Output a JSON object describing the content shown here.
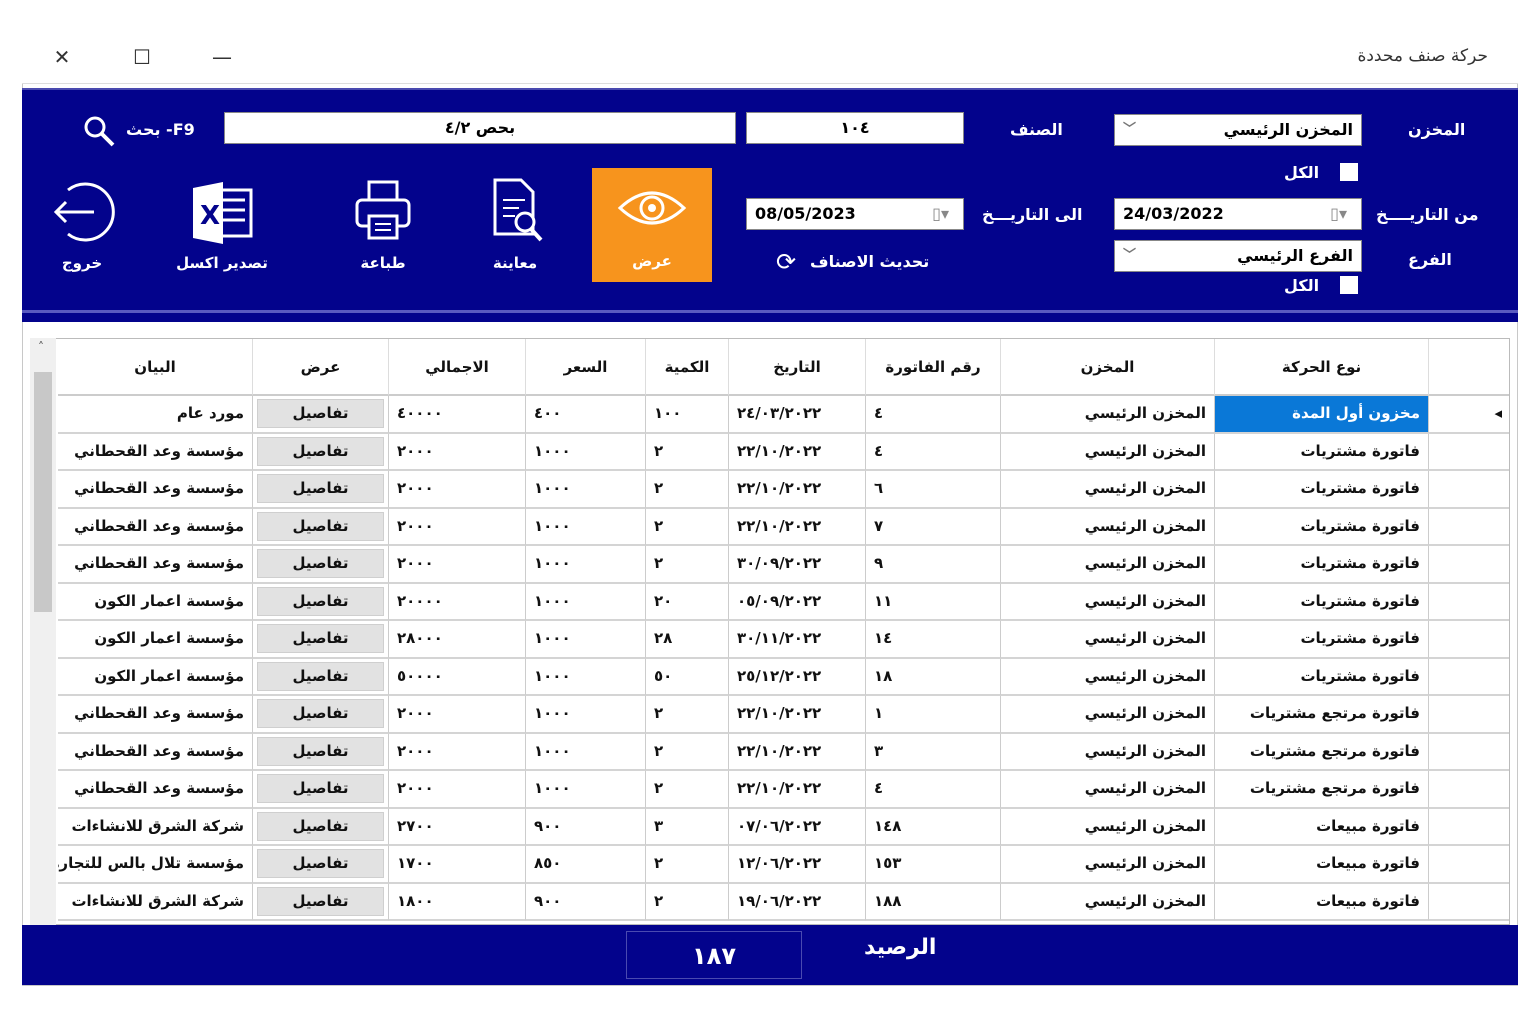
{
  "window": {
    "title": "حركة صنف محددة",
    "close": "✕",
    "maximize": "☐",
    "minimize": "—"
  },
  "filters": {
    "store_label": "المخزن",
    "store_value": "المخزن الرئيسي",
    "item_label": "الصنف",
    "item_code": "١٠٤",
    "item_name": "بحص ٤/٢",
    "search_label": "بحث -F9",
    "all_label": "الكل",
    "from_date_label": "من التاريــــخ",
    "from_date": "24/03/2022",
    "to_date_label": "الى التاريـــخ",
    "to_date": "08/05/2023",
    "branch_label": "الفرع",
    "branch_value": "الفرع الرئيسي",
    "all_label2": "الكل",
    "refresh_label": "تحديث الاصناف"
  },
  "toolbar": {
    "view": "عرض",
    "preview": "معاينة",
    "print": "طباعة",
    "export": "تصدير اكسل",
    "exit": "خروج",
    "accent": "#f7941d"
  },
  "columns": {
    "type": "نوع الحركة",
    "store": "المخزن",
    "invoice": "رقم الفاتورة",
    "date": "التاريخ",
    "qty": "الكمية",
    "price": "السعر",
    "total": "الاجمالي",
    "view": "عرض",
    "desc": "البيان"
  },
  "rows": [
    {
      "type": "مخزون أول المدة",
      "store": "المخزن الرئيسي",
      "invoice": "٤",
      "date": "٢٤/٠٣/٢٠٢٢",
      "qty": "١٠٠",
      "price": "٤٠٠",
      "total": "٤٠٠٠٠",
      "view": "تفاصيل",
      "desc": "مورد عام"
    },
    {
      "type": "فاتورة مشتريات",
      "store": "المخزن الرئيسي",
      "invoice": "٤",
      "date": "٢٢/١٠/٢٠٢٢",
      "qty": "٢",
      "price": "١٠٠٠",
      "total": "٢٠٠٠",
      "view": "تفاصيل",
      "desc": "مؤسسة وعد القحطاني"
    },
    {
      "type": "فاتورة مشتريات",
      "store": "المخزن الرئيسي",
      "invoice": "٦",
      "date": "٢٢/١٠/٢٠٢٢",
      "qty": "٢",
      "price": "١٠٠٠",
      "total": "٢٠٠٠",
      "view": "تفاصيل",
      "desc": "مؤسسة وعد القحطاني"
    },
    {
      "type": "فاتورة مشتريات",
      "store": "المخزن الرئيسي",
      "invoice": "٧",
      "date": "٢٢/١٠/٢٠٢٢",
      "qty": "٢",
      "price": "١٠٠٠",
      "total": "٢٠٠٠",
      "view": "تفاصيل",
      "desc": "مؤسسة وعد القحطاني"
    },
    {
      "type": "فاتورة مشتريات",
      "store": "المخزن الرئيسي",
      "invoice": "٩",
      "date": "٣٠/٠٩/٢٠٢٢",
      "qty": "٢",
      "price": "١٠٠٠",
      "total": "٢٠٠٠",
      "view": "تفاصيل",
      "desc": "مؤسسة وعد القحطاني"
    },
    {
      "type": "فاتورة مشتريات",
      "store": "المخزن الرئيسي",
      "invoice": "١١",
      "date": "٠٥/٠٩/٢٠٢٢",
      "qty": "٢٠",
      "price": "١٠٠٠",
      "total": "٢٠٠٠٠",
      "view": "تفاصيل",
      "desc": "مؤسسة اعمار الكون"
    },
    {
      "type": "فاتورة مشتريات",
      "store": "المخزن الرئيسي",
      "invoice": "١٤",
      "date": "٣٠/١١/٢٠٢٢",
      "qty": "٢٨",
      "price": "١٠٠٠",
      "total": "٢٨٠٠٠",
      "view": "تفاصيل",
      "desc": "مؤسسة اعمار الكون"
    },
    {
      "type": "فاتورة مشتريات",
      "store": "المخزن الرئيسي",
      "invoice": "١٨",
      "date": "٢٥/١٢/٢٠٢٢",
      "qty": "٥٠",
      "price": "١٠٠٠",
      "total": "٥٠٠٠٠",
      "view": "تفاصيل",
      "desc": "مؤسسة اعمار الكون"
    },
    {
      "type": "فاتورة مرتجع مشتريات",
      "store": "المخزن الرئيسي",
      "invoice": "١",
      "date": "٢٢/١٠/٢٠٢٢",
      "qty": "٢",
      "price": "١٠٠٠",
      "total": "٢٠٠٠",
      "view": "تفاصيل",
      "desc": "مؤسسة وعد القحطاني"
    },
    {
      "type": "فاتورة مرتجع مشتريات",
      "store": "المخزن الرئيسي",
      "invoice": "٣",
      "date": "٢٢/١٠/٢٠٢٢",
      "qty": "٢",
      "price": "١٠٠٠",
      "total": "٢٠٠٠",
      "view": "تفاصيل",
      "desc": "مؤسسة وعد القحطاني"
    },
    {
      "type": "فاتورة مرتجع مشتريات",
      "store": "المخزن الرئيسي",
      "invoice": "٤",
      "date": "٢٢/١٠/٢٠٢٢",
      "qty": "٢",
      "price": "١٠٠٠",
      "total": "٢٠٠٠",
      "view": "تفاصيل",
      "desc": "مؤسسة وعد القحطاني"
    },
    {
      "type": "فاتورة مبيعات",
      "store": "المخزن الرئيسي",
      "invoice": "١٤٨",
      "date": "٠٧/٠٦/٢٠٢٢",
      "qty": "٣",
      "price": "٩٠٠",
      "total": "٢٧٠٠",
      "view": "تفاصيل",
      "desc": "شركة الشرق للانشاءات"
    },
    {
      "type": "فاتورة مبيعات",
      "store": "المخزن الرئيسي",
      "invoice": "١٥٣",
      "date": "١٢/٠٦/٢٠٢٢",
      "qty": "٢",
      "price": "٨٥٠",
      "total": "١٧٠٠",
      "view": "تفاصيل",
      "desc": "مؤسسة تلال بالس للتجارة"
    },
    {
      "type": "فاتورة مبيعات",
      "store": "المخزن الرئيسي",
      "invoice": "١٨٨",
      "date": "١٩/٠٦/٢٠٢٢",
      "qty": "٢",
      "price": "٩٠٠",
      "total": "١٨٠٠",
      "view": "تفاصيل",
      "desc": "شركة الشرق للانشاءات"
    }
  ],
  "footer": {
    "balance_label": "الرصيد",
    "balance_value": "١٨٧"
  },
  "colors": {
    "panel": "#03038c",
    "selection": "#0a78d7",
    "accent": "#f7941d"
  }
}
